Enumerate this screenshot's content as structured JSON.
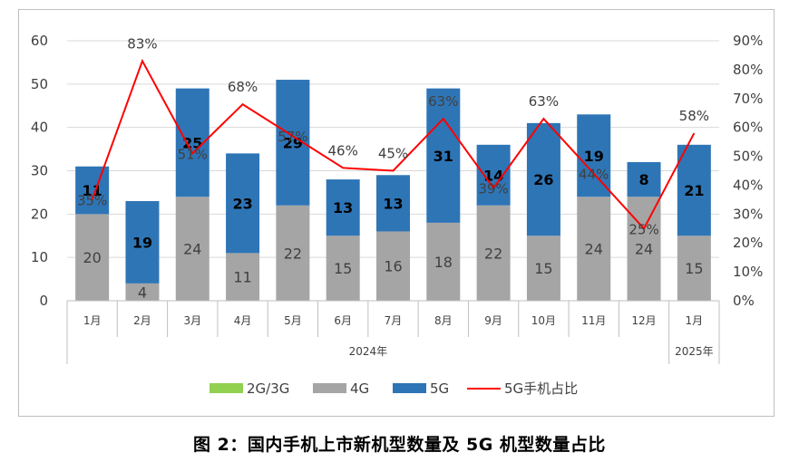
{
  "chart_data": {
    "type": "bar",
    "categories": [
      "1月",
      "2月",
      "3月",
      "4月",
      "5月",
      "6月",
      "7月",
      "8月",
      "9月",
      "10月",
      "11月",
      "12月",
      "1月"
    ],
    "year_groups": [
      {
        "label": "2024年",
        "start": 0,
        "end": 11
      },
      {
        "label": "2025年",
        "start": 12,
        "end": 12
      }
    ],
    "series": [
      {
        "name": "2G/3G",
        "color": "#92d050",
        "values": [
          0,
          0,
          0,
          0,
          0,
          0,
          0,
          0,
          0,
          0,
          0,
          0,
          0
        ]
      },
      {
        "name": "4G",
        "color": "#a5a5a5",
        "values": [
          20,
          4,
          24,
          11,
          22,
          15,
          16,
          18,
          22,
          15,
          24,
          24,
          15
        ]
      },
      {
        "name": "5G",
        "color": "#2e75b6",
        "values": [
          11,
          19,
          25,
          23,
          29,
          13,
          13,
          31,
          14,
          26,
          19,
          8,
          21
        ]
      }
    ],
    "line": {
      "name": "5G手机占比",
      "color": "#ff0000",
      "values": [
        35,
        83,
        51,
        68,
        57,
        46,
        45,
        63,
        39,
        63,
        44,
        25,
        58
      ],
      "labels": [
        "35%",
        "83%",
        "51%",
        "68%",
        "57%",
        "46%",
        "45%",
        "63%",
        "39%",
        "63%",
        "44%",
        "25%",
        "58%"
      ]
    },
    "ylim": [
      0,
      60
    ],
    "yticks": [
      "0",
      "10",
      "20",
      "30",
      "40",
      "50",
      "60"
    ],
    "y2lim": [
      0,
      90
    ],
    "y2ticks": [
      "0%",
      "10%",
      "20%",
      "30%",
      "40%",
      "50%",
      "60%",
      "70%",
      "80%",
      "90%"
    ],
    "grid": true,
    "legend_position": "bottom"
  },
  "caption": "图 2：国内手机上市新机型数量及 5G 机型数量占比"
}
